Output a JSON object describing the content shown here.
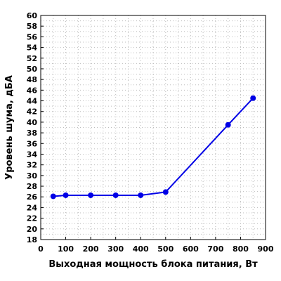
{
  "chart_data": {
    "type": "line",
    "title": "",
    "xlabel": "Выходная мощность блока питания, Вт",
    "ylabel": "Уровень шума, дБА",
    "xlim": [
      0,
      900
    ],
    "ylim": [
      18,
      60
    ],
    "x_ticks": [
      0,
      100,
      200,
      300,
      400,
      500,
      600,
      700,
      800,
      900
    ],
    "y_ticks": [
      18,
      20,
      22,
      24,
      26,
      28,
      30,
      32,
      34,
      36,
      38,
      40,
      42,
      44,
      46,
      48,
      50,
      52,
      54,
      56,
      58,
      60
    ],
    "grid": true,
    "legend": "none",
    "series": [
      {
        "color": "#0000e6",
        "x": [
          50,
          100,
          200,
          300,
          400,
          500,
          750,
          850
        ],
        "y": [
          26.1,
          26.3,
          26.3,
          26.3,
          26.3,
          26.9,
          39.5,
          44.5
        ]
      }
    ]
  }
}
